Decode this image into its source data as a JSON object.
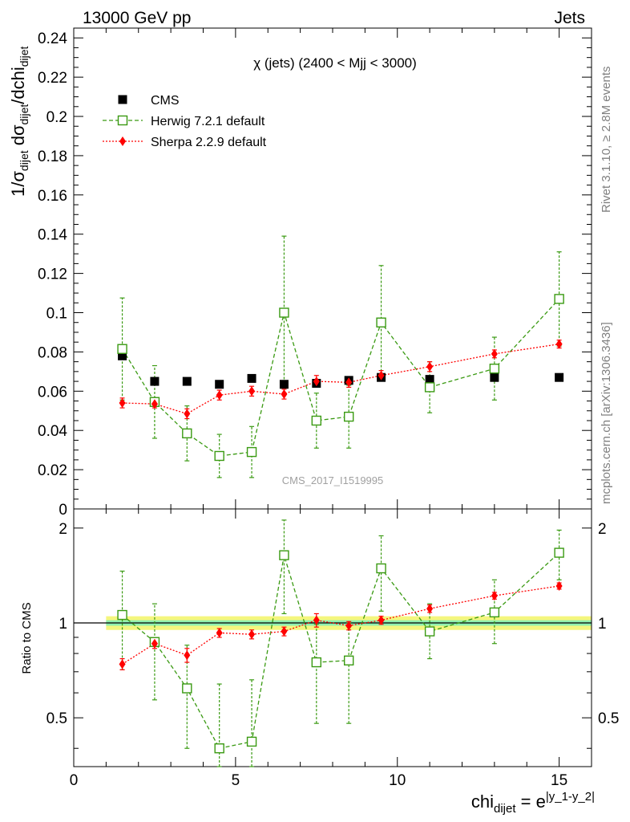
{
  "header": {
    "left": "13000 GeV pp",
    "right": "Jets"
  },
  "side_labels": {
    "rivet": "Rivet 3.1.10, ≥ 2.8M events",
    "mcplots": "mcplots.cern.ch [arXiv:1306.3436]"
  },
  "chart_data": [
    {
      "type": "scatter",
      "panel": "main",
      "title": "χ (jets) (2400 < Mjj < 3000)",
      "watermark": "CMS_2017_I1519995",
      "ylabel": "1/σdijet dσdijet/dchidijet",
      "ylim": [
        0,
        0.245
      ],
      "yticks": [
        "0",
        "0.02",
        "0.04",
        "0.06",
        "0.08",
        "0.1",
        "0.12",
        "0.14",
        "0.16",
        "0.18",
        "0.2",
        "0.22",
        "0.24"
      ],
      "xlim": [
        0,
        16
      ],
      "legend_position": "top-left",
      "series": [
        {
          "name": "CMS",
          "color": "#000000",
          "marker": "filled-square",
          "x": [
            1.5,
            2.5,
            3.5,
            4.5,
            5.5,
            6.5,
            7.5,
            8.5,
            9.5,
            11,
            13,
            15
          ],
          "y": [
            0.078,
            0.065,
            0.065,
            0.0635,
            0.0665,
            0.0635,
            0.064,
            0.0655,
            0.067,
            0.066,
            0.067,
            0.067
          ]
        },
        {
          "name": "Herwig 7.2.1 default",
          "color": "#3a9a12",
          "marker": "open-square",
          "x": [
            1.5,
            2.5,
            3.5,
            4.5,
            5.5,
            6.5,
            7.5,
            8.5,
            9.5,
            11,
            13,
            15
          ],
          "y": [
            0.0815,
            0.0545,
            0.0385,
            0.027,
            0.029,
            0.1,
            0.045,
            0.047,
            0.095,
            0.062,
            0.0715,
            0.107
          ],
          "err_low": [
            0.026,
            0.0185,
            0.014,
            0.011,
            0.013,
            0.036,
            0.014,
            0.016,
            0.029,
            0.013,
            0.016,
            0.024
          ],
          "err_high": [
            0.026,
            0.0185,
            0.014,
            0.011,
            0.013,
            0.039,
            0.014,
            0.016,
            0.029,
            0.013,
            0.016,
            0.024
          ]
        },
        {
          "name": "Sherpa 2.2.9 default",
          "color": "#ff0000",
          "marker": "filled-diamond",
          "x": [
            1.5,
            2.5,
            3.5,
            4.5,
            5.5,
            6.5,
            7.5,
            8.5,
            9.5,
            11,
            13,
            15
          ],
          "y": [
            0.054,
            0.0535,
            0.0485,
            0.058,
            0.06,
            0.0585,
            0.065,
            0.0645,
            0.068,
            0.0725,
            0.079,
            0.084
          ],
          "err": [
            0.0025,
            0.002,
            0.0025,
            0.0025,
            0.0025,
            0.0025,
            0.003,
            0.0025,
            0.0025,
            0.0025,
            0.002,
            0.002
          ]
        }
      ]
    },
    {
      "type": "scatter",
      "panel": "ratio",
      "ylabel": "Ratio to CMS",
      "xlabel": "chidijet = e|y_1-y_2|",
      "ylim": [
        0.35,
        2.3
      ],
      "yticks": [
        "0.5",
        "1",
        "2"
      ],
      "xlim": [
        0,
        16
      ],
      "xticks": [
        "0",
        "5",
        "10",
        "15"
      ],
      "reference_band": {
        "x_range": [
          1,
          16
        ],
        "inner": [
          0.98,
          1.02
        ],
        "outer": [
          0.95,
          1.05
        ]
      },
      "series": [
        {
          "name": "Herwig 7.2.1 default",
          "color": "#3a9a12",
          "x": [
            1.5,
            2.5,
            3.5,
            4.5,
            5.5,
            6.5,
            7.5,
            8.5,
            9.5,
            11,
            13,
            15
          ],
          "y": [
            1.06,
            0.87,
            0.62,
            0.4,
            0.42,
            1.64,
            0.75,
            0.76,
            1.49,
            0.94,
            1.08,
            1.67
          ],
          "err_low": [
            0.35,
            0.3,
            0.22,
            0.2,
            0.2,
            0.57,
            0.27,
            0.28,
            0.4,
            0.17,
            0.22,
            0.3
          ],
          "err_high": [
            0.4,
            0.28,
            0.23,
            0.24,
            0.24,
            0.48,
            0.24,
            0.24,
            0.4,
            0.21,
            0.29,
            0.3
          ]
        },
        {
          "name": "Sherpa 2.2.9 default",
          "color": "#ff0000",
          "x": [
            1.5,
            2.5,
            3.5,
            4.5,
            5.5,
            6.5,
            7.5,
            8.5,
            9.5,
            11,
            13,
            15
          ],
          "y": [
            0.74,
            0.86,
            0.79,
            0.93,
            0.92,
            0.94,
            1.02,
            0.98,
            1.02,
            1.11,
            1.22,
            1.31
          ],
          "err": [
            0.03,
            0.03,
            0.04,
            0.03,
            0.03,
            0.03,
            0.05,
            0.03,
            0.03,
            0.03,
            0.03,
            0.03
          ]
        }
      ]
    }
  ]
}
